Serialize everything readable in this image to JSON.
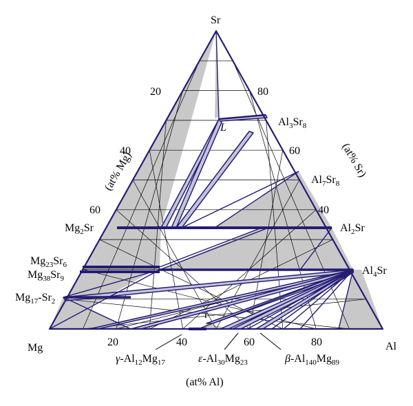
{
  "diagram": {
    "vertices": {
      "top": "Sr",
      "left": "Mg",
      "right": "Al"
    },
    "axes": {
      "left": {
        "label": "(at% Mg)",
        "ticks": [
          "20",
          "40",
          "60"
        ]
      },
      "right": {
        "label": "(at% Sr)",
        "ticks": [
          "80",
          "60",
          "40"
        ]
      },
      "bottom": {
        "label": "(at% Al)",
        "ticks": [
          "20",
          "40",
          "60",
          "80"
        ]
      }
    },
    "liquid_label": "L",
    "ternary_label": "τ",
    "phases": {
      "al3sr8": {
        "base1": "Al",
        "sub1": "3",
        "base2": "Sr",
        "sub2": "8"
      },
      "al7sr8": {
        "base1": "Al",
        "sub1": "7",
        "base2": "Sr",
        "sub2": "8"
      },
      "al2sr": {
        "base1": "Al",
        "sub1": "2",
        "base2": "Sr"
      },
      "al4sr": {
        "base1": "Al",
        "sub1": "4",
        "base2": "Sr"
      },
      "mg2sr": {
        "base1": "Mg",
        "sub1": "2",
        "base2": "Sr"
      },
      "mg23sr6": {
        "base1": "Mg",
        "sub1": "23",
        "base2": "Sr",
        "sub2": "6"
      },
      "mg38sr9": {
        "base1": "Mg",
        "sub1": "38",
        "base2": "Sr",
        "sub2": "9"
      },
      "mg17sr2": {
        "base1": "Mg",
        "sub1": "17",
        "base2": "-Sr",
        "sub2": "2"
      },
      "gamma": {
        "greek": "γ",
        "base1": "-Al",
        "sub1": "12",
        "base2": "Mg",
        "sub2": "17"
      },
      "epsilon": {
        "greek": "ε",
        "base1": "-Al",
        "sub1": "30",
        "base2": "Mg",
        "sub2": "23"
      },
      "beta": {
        "greek": "β",
        "base1": "-Al",
        "sub1": "140",
        "base2": "Mg",
        "sub2": "89"
      }
    },
    "colors": {
      "line": "#241c72",
      "fill": "#c8c8c8",
      "tie_fill": "#c4c4dc"
    }
  }
}
